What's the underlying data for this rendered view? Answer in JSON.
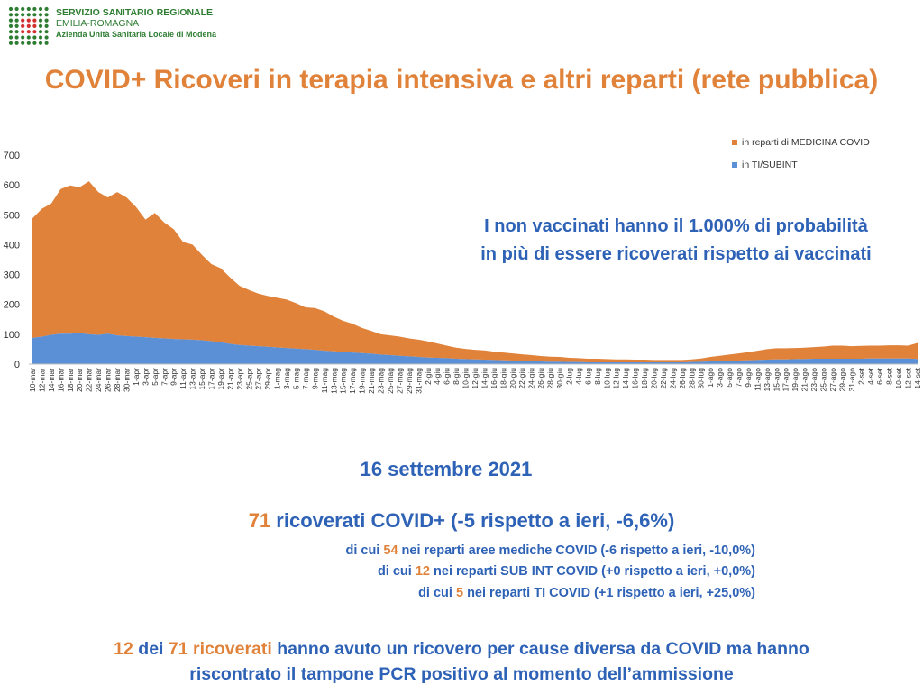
{
  "header": {
    "org_line1": "SERVIZIO SANITARIO REGIONALE",
    "org_line2": "EMILIA-ROMAGNA",
    "org_line3": "Azienda Unità Sanitaria Locale di Modena",
    "title": "COVID+ Ricoveri in terapia intensiva e altri reparti (rete pubblica)"
  },
  "colors": {
    "medicina": "#e0823a",
    "ti": "#5b8fd6",
    "title": "#e0823a",
    "text_blue": "#2e62b6",
    "logo_green": "#2e7d32",
    "logo_red": "#d32f2f"
  },
  "chart_data": {
    "type": "area",
    "stacked": true,
    "title": "",
    "xlabel": "",
    "ylabel": "",
    "ylim": [
      0,
      700
    ],
    "yticks": [
      0,
      100,
      200,
      300,
      400,
      500,
      600,
      700
    ],
    "grid": false,
    "legend_position": "top-right",
    "x_tick_labels": [
      "10-mar",
      "12-mar",
      "14-mar",
      "16-mar",
      "18-mar",
      "20-mar",
      "22-mar",
      "24-mar",
      "26-mar",
      "28-mar",
      "30-mar",
      "1-apr",
      "3-apr",
      "5-apr",
      "7-apr",
      "9-apr",
      "11-apr",
      "13-apr",
      "15-apr",
      "17-apr",
      "19-apr",
      "21-apr",
      "23-apr",
      "25-apr",
      "27-apr",
      "29-apr",
      "1-mag",
      "3-mag",
      "5-mag",
      "7-mag",
      "9-mag",
      "11-mag",
      "13-mag",
      "15-mag",
      "17-mag",
      "19-mag",
      "21-mag",
      "23-mag",
      "25-mag",
      "27-mag",
      "29-mag",
      "31-mag",
      "2-giu",
      "4-giu",
      "6-giu",
      "8-giu",
      "10-giu",
      "12-giu",
      "14-giu",
      "16-giu",
      "18-giu",
      "20-giu",
      "22-giu",
      "24-giu",
      "26-giu",
      "28-giu",
      "30-giu",
      "2-lug",
      "4-lug",
      "6-lug",
      "8-lug",
      "10-lug",
      "12-lug",
      "14-lug",
      "16-lug",
      "18-lug",
      "20-lug",
      "22-lug",
      "24-lug",
      "26-lug",
      "28-lug",
      "30-lug",
      "1-ago",
      "3-ago",
      "5-ago",
      "7-ago",
      "9-ago",
      "11-ago",
      "13-ago",
      "15-ago",
      "17-ago",
      "19-ago",
      "21-ago",
      "23-ago",
      "25-ago",
      "27-ago",
      "29-ago",
      "31-ago",
      "2-set",
      "4-set",
      "6-set",
      "8-set",
      "10-set",
      "12-set",
      "14-set"
    ],
    "series": [
      {
        "name": "in TI/SUBINT",
        "color": "#5b8fd6",
        "values": [
          88,
          92,
          98,
          102,
          102,
          104,
          100,
          98,
          102,
          96,
          94,
          92,
          90,
          88,
          86,
          84,
          83,
          82,
          80,
          77,
          73,
          68,
          64,
          62,
          60,
          58,
          56,
          54,
          52,
          50,
          48,
          45,
          43,
          41,
          39,
          37,
          35,
          32,
          30,
          28,
          26,
          24,
          22,
          21,
          20,
          18,
          17,
          16,
          15,
          14,
          13,
          12,
          11,
          10,
          9,
          8,
          8,
          7,
          7,
          6,
          6,
          6,
          6,
          6,
          6,
          6,
          6,
          6,
          6,
          6,
          7,
          8,
          9,
          10,
          11,
          12,
          13,
          14,
          15,
          16,
          16,
          17,
          17,
          18,
          18,
          18,
          18,
          18,
          18,
          19,
          19,
          19,
          19,
          19,
          17
        ]
      },
      {
        "name": "in reparti di MEDICINA COVID",
        "color": "#e0823a",
        "values": [
          400,
          428,
          440,
          484,
          496,
          488,
          512,
          478,
          456,
          480,
          464,
          434,
          394,
          418,
          388,
          368,
          326,
          318,
          286,
          258,
          248,
          222,
          198,
          186,
          176,
          170,
          166,
          162,
          152,
          140,
          140,
          132,
          116,
          104,
          96,
          84,
          76,
          68,
          66,
          64,
          60,
          58,
          54,
          48,
          42,
          37,
          34,
          32,
          31,
          28,
          26,
          24,
          22,
          20,
          18,
          17,
          16,
          14,
          13,
          12,
          12,
          11,
          10,
          10,
          9,
          9,
          8,
          8,
          8,
          8,
          9,
          11,
          15,
          18,
          21,
          24,
          27,
          31,
          35,
          37,
          37,
          37,
          38,
          39,
          41,
          44,
          44,
          42,
          43,
          43,
          43,
          44,
          44,
          43,
          54
        ]
      }
    ]
  },
  "annotation": {
    "line1": "I non vaccinati hanno il 1.000% di probabilità",
    "line2": "in più di essere ricoverati rispetto ai vaccinati"
  },
  "summary": {
    "date": "16 settembre 2021",
    "total_count": "71",
    "total_rest": " ricoverati COVID+ (-5 rispetto a ieri, -6,6%)",
    "rows": [
      {
        "pre": "di cui ",
        "count": "54",
        "post": " nei reparti aree mediche COVID (-6 rispetto a ieri, -10,0%)"
      },
      {
        "pre": "di cui ",
        "count": "12",
        "post": " nei reparti SUB INT COVID (+0 rispetto a ieri, +0,0%)"
      },
      {
        "pre": "di cui ",
        "count": "5",
        "post": " nei reparti TI COVID (+1 rispetto a ieri, +25,0%)"
      }
    ]
  },
  "footer": {
    "count_a": "12",
    "mid1": " dei ",
    "count_b": "71",
    "space": " ",
    "word_orange": "ricoverati",
    "rest_line1": " hanno avuto un ricovero per cause diversa da COVID ma hanno",
    "line2": "riscontrato il tampone PCR positivo al momento dell’ammissione"
  }
}
